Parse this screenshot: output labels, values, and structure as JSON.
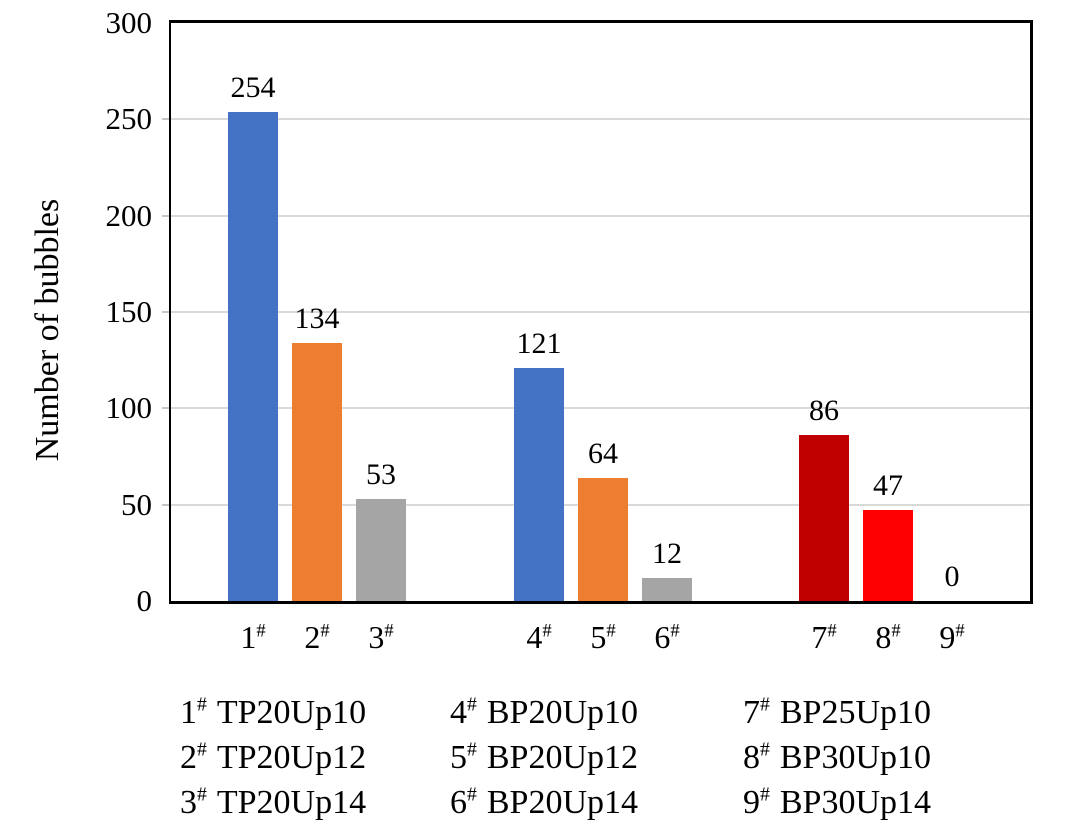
{
  "chart_data": {
    "type": "bar",
    "title": "",
    "xlabel": "",
    "ylabel": "Number of bubbles",
    "ylim": [
      0,
      300
    ],
    "ytick_step": 50,
    "grid": true,
    "gridline_color": "#d9d9d9",
    "axis_color": "#000000",
    "categories": [
      "1#",
      "2#",
      "3#",
      "4#",
      "5#",
      "6#",
      "7#",
      "8#",
      "9#"
    ],
    "values": [
      254,
      134,
      53,
      121,
      64,
      12,
      86,
      47,
      0
    ],
    "bar_colors": [
      "#4472C4",
      "#ED7D31",
      "#A5A5A5",
      "#4472C4",
      "#ED7D31",
      "#A5A5A5",
      "#C00000",
      "#FF0000",
      "#FF0000"
    ],
    "groups": [
      [
        0,
        1,
        2
      ],
      [
        3,
        4,
        5
      ],
      [
        6,
        7,
        8
      ]
    ],
    "legend_position": "bottom",
    "legend_columns": [
      {
        "entries": [
          {
            "num": "1",
            "suffix": "#",
            "label": "TP20Up10"
          },
          {
            "num": "2",
            "suffix": "#",
            "label": "TP20Up12"
          },
          {
            "num": "3",
            "suffix": "#",
            "label": "TP20Up14"
          }
        ]
      },
      {
        "entries": [
          {
            "num": "4",
            "suffix": "#",
            "label": "BP20Up10"
          },
          {
            "num": "5",
            "suffix": "#",
            "label": "BP20Up12"
          },
          {
            "num": "6",
            "suffix": "#",
            "label": "BP20Up14"
          }
        ]
      },
      {
        "entries": [
          {
            "num": "7",
            "suffix": "#",
            "label": "BP25Up10"
          },
          {
            "num": "8",
            "suffix": "#",
            "label": "BP30Up10"
          },
          {
            "num": "9",
            "suffix": "#",
            "label": "BP30Up14"
          }
        ]
      }
    ]
  }
}
